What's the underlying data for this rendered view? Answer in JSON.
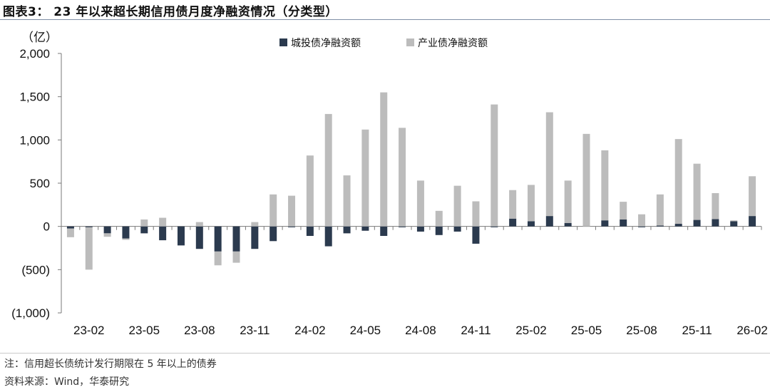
{
  "title": "图表3：  23 年以来超长期信用债月度净融资情况（分类型）",
  "footnote": "注：信用超长债统计发行期限在 5 年以上的债券",
  "source": "资料来源：Wind，华泰研究",
  "chart_data": {
    "type": "bar",
    "stacking": "stacked",
    "unit_label": "（亿）",
    "ylim": [
      -1000,
      2000
    ],
    "yticks": [
      2000,
      1500,
      1000,
      500,
      0,
      -500,
      -1000
    ],
    "ytick_labels": [
      "2,000",
      "1,500",
      "1,000",
      "500",
      "0",
      "(500)",
      "(1,000)"
    ],
    "categories": [
      "23-01",
      "23-02",
      "23-03",
      "23-04",
      "23-05",
      "23-06",
      "23-07",
      "23-08",
      "23-09",
      "23-10",
      "23-11",
      "23-12",
      "24-01",
      "24-02",
      "24-03",
      "24-04",
      "24-05",
      "24-06",
      "24-07",
      "24-08",
      "24-09",
      "24-10",
      "24-11",
      "24-12",
      "25-01",
      "25-02",
      "25-03",
      "25-04",
      "25-05",
      "25-06",
      "25-07",
      "25-08",
      "25-09",
      "25-10",
      "25-11",
      "25-12",
      "26-01",
      "26-02"
    ],
    "xtick_labels": [
      "23-02",
      "23-05",
      "23-08",
      "23-11",
      "24-02",
      "24-05",
      "24-08",
      "24-11",
      "25-02",
      "25-05",
      "25-08",
      "25-11",
      "26-02"
    ],
    "legend_position": "top-center",
    "series": [
      {
        "name": "城投债净融资额",
        "color": "#2b3a4e",
        "values": [
          -25,
          -10,
          -80,
          -140,
          -80,
          -160,
          -220,
          -260,
          -290,
          -290,
          -260,
          -170,
          -10,
          -110,
          -230,
          -80,
          -50,
          -110,
          -10,
          -60,
          -100,
          -60,
          -200,
          -10,
          90,
          60,
          120,
          40,
          0,
          70,
          80,
          -10,
          10,
          30,
          75,
          85,
          60,
          120
        ]
      },
      {
        "name": "产业债净融资额",
        "color": "#bcbcbc",
        "values": [
          -100,
          -490,
          -40,
          -15,
          80,
          100,
          0,
          50,
          -160,
          -130,
          50,
          370,
          355,
          820,
          1300,
          590,
          1120,
          1550,
          1140,
          530,
          180,
          470,
          290,
          1410,
          330,
          420,
          1200,
          490,
          1070,
          810,
          205,
          140,
          360,
          980,
          650,
          300,
          10,
          460
        ]
      }
    ]
  }
}
